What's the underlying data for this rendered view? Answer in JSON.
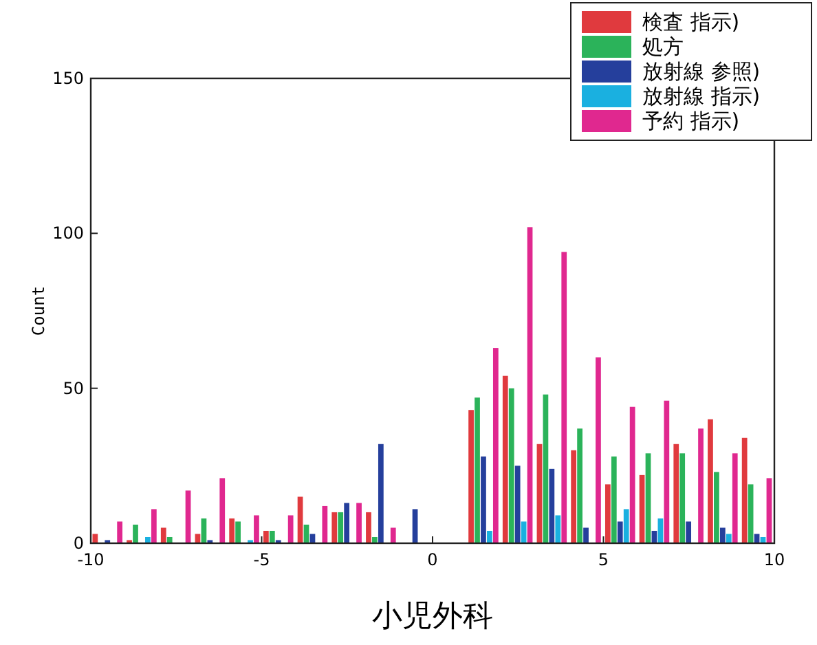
{
  "chart_data": {
    "type": "histogram",
    "xlabel": "小児外科",
    "ylabel": "Count",
    "bins": [
      -10,
      -9,
      -8,
      -7,
      -6,
      -5,
      -4,
      -3,
      -2,
      -1,
      0,
      1,
      2,
      3,
      4,
      5,
      6,
      7,
      8,
      9,
      10
    ],
    "series": [
      {
        "name": "検査 指示)",
        "color": "#e03a3e",
        "values": [
          3,
          1,
          5,
          3,
          8,
          4,
          15,
          10,
          10,
          0,
          0,
          43,
          54,
          32,
          30,
          19,
          22,
          32,
          40,
          34
        ]
      },
      {
        "name": "処方",
        "color": "#2bb35a",
        "values": [
          0,
          6,
          2,
          8,
          7,
          4,
          6,
          10,
          2,
          0,
          0,
          47,
          50,
          48,
          37,
          28,
          29,
          29,
          23,
          19
        ]
      },
      {
        "name": "放射線 参照)",
        "color": "#253f9c",
        "values": [
          1,
          0,
          0,
          1,
          0,
          1,
          3,
          13,
          32,
          11,
          0,
          28,
          25,
          24,
          5,
          7,
          4,
          7,
          5,
          3
        ]
      },
      {
        "name": "放射線 指示)",
        "color": "#1ab0e0",
        "values": [
          0,
          2,
          0,
          0,
          1,
          0,
          0,
          0,
          0,
          0,
          0,
          4,
          7,
          9,
          0,
          11,
          8,
          0,
          3,
          2
        ]
      },
      {
        "name": "予約 指示)",
        "color": "#e0288f",
        "values": [
          7,
          11,
          17,
          21,
          9,
          9,
          12,
          13,
          5,
          0,
          0,
          63,
          102,
          94,
          60,
          44,
          46,
          37,
          29,
          21
        ]
      }
    ],
    "xlim": [
      -10,
      10
    ],
    "xticks": [
      -10,
      -5,
      0,
      5,
      10
    ],
    "ylim": [
      0,
      150
    ],
    "yticks": [
      0,
      50,
      100,
      150
    ],
    "legend": "top right",
    "grid": false
  }
}
